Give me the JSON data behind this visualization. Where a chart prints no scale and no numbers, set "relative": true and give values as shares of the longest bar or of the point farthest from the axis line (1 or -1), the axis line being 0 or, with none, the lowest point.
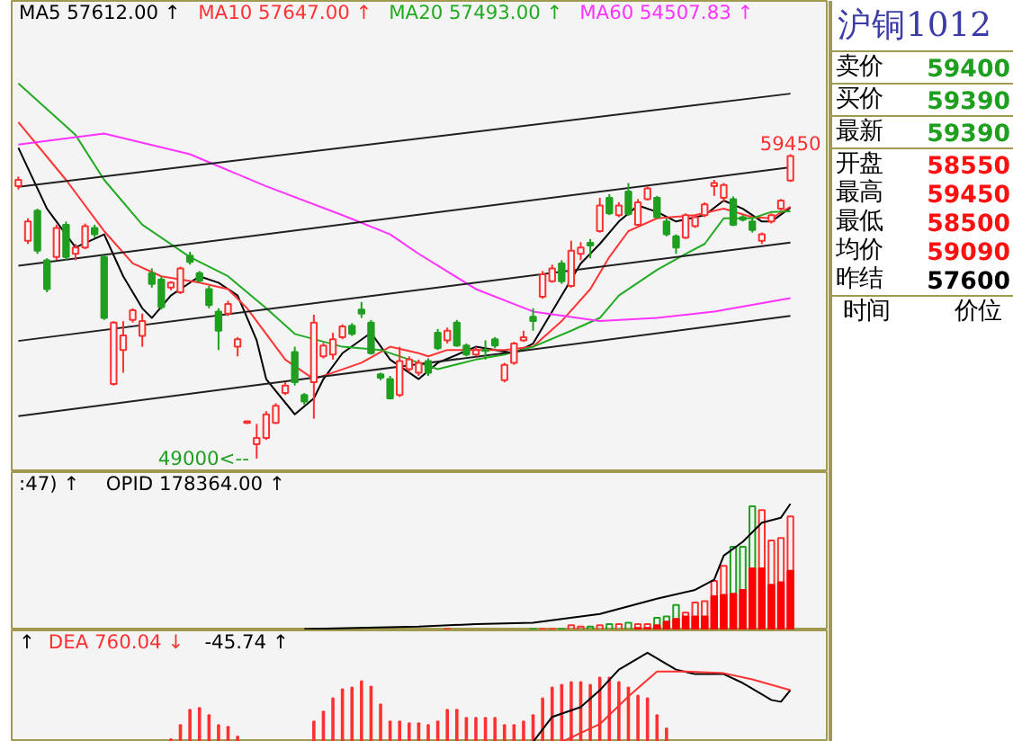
{
  "chart_data": [
    {
      "type": "candlestick",
      "colors": [
        "#ff3030",
        "#ff3030",
        "#1f9f1f",
        "#1f9f1f",
        "#ff3030",
        "#1f9f1f",
        "#ff3030",
        "#ff3030",
        "#1f9f1f",
        "#1f9f1f",
        "#ff3030",
        "#ff3030",
        "#ff3030",
        "#ff3030",
        "#1f9f1f",
        "#1f9f1f",
        "#ff3030",
        "#ff3030",
        "#1f9f1f",
        "#1f9f1f",
        "#1f9f1f",
        "#1f9f1f",
        "#ff3030",
        "#ff3030",
        "#ff3030",
        "#ff3030",
        "#ff3030",
        "#ff3030",
        "#ff3030",
        "#1f9f1f",
        "#1f9f1f",
        "#ff3030",
        "#ff3030",
        "#ff3030",
        "#ff3030",
        "#1f9f1f",
        "#1f9f1f",
        "#1f9f1f",
        "#1f9f1f",
        "#1f9f1f",
        "#ff3030",
        "#ff3030",
        "#ff3030",
        "#1f9f1f",
        "#1f9f1f",
        "#ff3030",
        "#1f9f1f",
        "#1f9f1f",
        "#ff3030",
        "#1f9f1f",
        "#1f9f1f",
        "#ff3030",
        "#ff3030",
        "#ff3030",
        "#1f9f1f",
        "#ff3030",
        "#ff3030",
        "#1f9f1f",
        "#ff3030",
        "#ff3030",
        "#1f9f1f",
        "#ff3030",
        "#1f9f1f",
        "#ff3030",
        "#1f9f1f",
        "#ff3030",
        "#ff3030",
        "#1f9f1f",
        "#1f9f1f",
        "#1f9f1f",
        "#ff3030",
        "#ff3030",
        "#ff3030",
        "#ff3030",
        "#ff3030",
        "#1f9f1f",
        "#1f9f1f",
        "#1f9f1f",
        "#ff3030",
        "#ff3030",
        "#ff3030",
        "#ff3030"
      ],
      "categories": [
        null,
        null,
        null,
        null,
        null,
        null,
        null,
        null,
        null,
        null,
        null,
        null,
        null,
        null,
        null,
        null,
        null,
        null,
        null,
        null,
        null,
        null,
        null,
        null,
        null,
        null,
        null,
        null,
        null,
        null,
        null,
        null,
        null,
        null,
        null,
        null,
        null,
        null,
        null,
        null,
        null,
        null,
        null,
        null,
        null,
        null,
        null,
        null,
        null,
        null,
        null,
        null,
        null,
        null,
        null,
        null,
        null,
        null,
        null,
        null,
        null,
        null,
        null,
        null,
        null,
        null,
        null,
        null,
        null,
        null,
        null,
        null,
        null,
        null,
        null,
        null,
        null,
        null,
        null,
        null,
        null,
        null
      ],
      "ohlc": [
        [
          58350,
          58680,
          58240,
          58570
        ],
        [
          56480,
          57250,
          56370,
          57140
        ],
        [
          57510,
          57580,
          56030,
          56140
        ],
        [
          55810,
          55880,
          54710,
          54820
        ],
        [
          55920,
          57030,
          55810,
          56920
        ],
        [
          57030,
          57140,
          55810,
          55920
        ],
        [
          56030,
          56370,
          55810,
          56250
        ],
        [
          56250,
          57070,
          56190,
          56980
        ],
        [
          56920,
          57030,
          56590,
          56700
        ],
        [
          55920,
          55970,
          53760,
          53830
        ],
        [
          51560,
          53720,
          51510,
          53670
        ],
        [
          52730,
          53720,
          51950,
          53230
        ],
        [
          53760,
          54160,
          53670,
          54090
        ],
        [
          53210,
          53980,
          52840,
          53720
        ],
        [
          55370,
          55530,
          54870,
          55000
        ],
        [
          55150,
          55260,
          54120,
          54200
        ],
        [
          54870,
          55090,
          54780,
          55040
        ],
        [
          54710,
          55590,
          54650,
          55530
        ],
        [
          55970,
          56100,
          55660,
          55750
        ],
        [
          55370,
          55440,
          55040,
          55110
        ],
        [
          54820,
          54930,
          54160,
          54270
        ],
        [
          54050,
          54160,
          52730,
          53390
        ],
        [
          53980,
          54420,
          53900,
          54310
        ],
        [
          52840,
          53170,
          52510,
          53100
        ],
        [
          50230,
          50300,
          50190,
          50280
        ],
        [
          49490,
          50190,
          49000,
          49710
        ],
        [
          49710,
          50630,
          49640,
          50520
        ],
        [
          50230,
          50900,
          50190,
          50810
        ],
        [
          51250,
          51620,
          51180,
          51510
        ],
        [
          52660,
          52840,
          51510,
          51620
        ],
        [
          51180,
          51250,
          50850,
          50960
        ],
        [
          51620,
          53940,
          50370,
          53670
        ],
        [
          52510,
          52970,
          52440,
          52880
        ],
        [
          52570,
          53320,
          52400,
          53100
        ],
        [
          53170,
          53610,
          53100,
          53540
        ],
        [
          53560,
          53650,
          53210,
          53280
        ],
        [
          54120,
          54380,
          53830,
          53980
        ],
        [
          53670,
          53760,
          52570,
          52620
        ],
        [
          51890,
          51950,
          51690,
          51780
        ],
        [
          51730,
          51840,
          51030,
          51070
        ],
        [
          51180,
          52840,
          51120,
          52350
        ],
        [
          52070,
          52510,
          51950,
          52400
        ],
        [
          51950,
          52400,
          51840,
          52290
        ],
        [
          52350,
          52440,
          51840,
          51950
        ],
        [
          53320,
          53450,
          52730,
          52790
        ],
        [
          53060,
          53500,
          52950,
          53390
        ],
        [
          53670,
          53760,
          52840,
          52880
        ],
        [
          52880,
          52950,
          52510,
          52570
        ],
        [
          52570,
          52840,
          52510,
          52730
        ],
        [
          52730,
          53060,
          52400,
          52700
        ],
        [
          53100,
          53170,
          52790,
          52880
        ],
        [
          51690,
          52290,
          51620,
          52220
        ],
        [
          52290,
          53010,
          52220,
          52950
        ],
        [
          53060,
          53390,
          53010,
          53170
        ],
        [
          53870,
          54160,
          53390,
          53720
        ],
        [
          54560,
          55440,
          54490,
          55330
        ],
        [
          55090,
          55660,
          55040,
          55530
        ],
        [
          55700,
          55810,
          55000,
          55090
        ],
        [
          54930,
          56480,
          54870,
          56140
        ],
        [
          56030,
          56430,
          55810,
          56250
        ],
        [
          56410,
          56540,
          55880,
          56320
        ],
        [
          56810,
          57950,
          56760,
          57690
        ],
        [
          57950,
          58080,
          57360,
          57420
        ],
        [
          57360,
          57800,
          57290,
          57690
        ],
        [
          58170,
          58460,
          57330,
          57400
        ],
        [
          57030,
          57910,
          56980,
          57800
        ],
        [
          57910,
          58350,
          57860,
          58280
        ],
        [
          57950,
          58020,
          57250,
          57290
        ],
        [
          57140,
          57250,
          56630,
          56700
        ],
        [
          56630,
          56700,
          56030,
          56250
        ],
        [
          56590,
          57420,
          56540,
          57360
        ],
        [
          56980,
          57360,
          56920,
          57290
        ],
        [
          57360,
          57800,
          57290,
          57730
        ],
        [
          58350,
          58570,
          58020,
          58460
        ],
        [
          57950,
          58460,
          57800,
          58390
        ],
        [
          57910,
          58000,
          56980,
          57030
        ],
        [
          57290,
          57360,
          57140,
          57200
        ],
        [
          57140,
          57250,
          56760,
          56850
        ],
        [
          56480,
          56760,
          56370,
          56700
        ],
        [
          57140,
          57420,
          57070,
          57360
        ],
        [
          57580,
          57910,
          57510,
          57860
        ],
        [
          58550,
          59450,
          58500,
          59390
        ]
      ],
      "series": [
        {
          "type": "line",
          "name": "MA5 57612.00 ↑",
          "color": "#000000",
          "values": [
            59670,
            null,
            null,
            57580,
            null,
            null,
            56250,
            null,
            null,
            56700,
            null,
            55260,
            null,
            54160,
            53830,
            null,
            54600,
            null,
            null,
            55260,
            null,
            55040,
            null,
            54600,
            null,
            53060,
            51730,
            null,
            null,
            50520,
            null,
            51070,
            51730,
            null,
            52620,
            null,
            null,
            53320,
            null,
            52400,
            null,
            null,
            51730,
            null,
            52290,
            null,
            null,
            null,
            52840,
            null,
            null,
            null,
            52620,
            null,
            52950,
            null,
            null,
            54600,
            null,
            55700,
            null,
            56370,
            null,
            57140,
            null,
            57690,
            null,
            57470,
            null,
            57140,
            null,
            null,
            57360,
            null,
            57860,
            null,
            57580,
            null,
            57140,
            57140,
            null,
            57612
          ]
        },
        {
          "type": "line",
          "name": "MA10 57647.00 ↑",
          "color": "#ff3333",
          "values": [
            60550,
            null,
            null,
            null,
            null,
            58570,
            null,
            null,
            null,
            56810,
            null,
            null,
            55700,
            null,
            null,
            55260,
            null,
            null,
            null,
            55040,
            null,
            null,
            54820,
            null,
            54160,
            null,
            null,
            null,
            52400,
            null,
            null,
            51730,
            null,
            51950,
            null,
            null,
            52290,
            null,
            null,
            52840,
            null,
            null,
            52620,
            52510,
            null,
            52730,
            null,
            null,
            null,
            null,
            null,
            52730,
            null,
            null,
            52840,
            null,
            null,
            53720,
            null,
            null,
            54820,
            null,
            55920,
            null,
            56810,
            null,
            null,
            57250,
            null,
            null,
            null,
            57360,
            null,
            null,
            57580,
            null,
            null,
            57290,
            null,
            57250,
            null,
            57647
          ]
        },
        {
          "type": "line",
          "name": "MA20 57493.00 ↑",
          "color": "#22aa22",
          "values": [
            61880,
            null,
            null,
            null,
            null,
            null,
            60110,
            null,
            null,
            58570,
            null,
            null,
            null,
            57030,
            null,
            null,
            null,
            null,
            55920,
            null,
            null,
            null,
            55260,
            null,
            null,
            null,
            54160,
            null,
            null,
            53280,
            null,
            null,
            null,
            null,
            52840,
            null,
            null,
            null,
            52730,
            null,
            null,
            null,
            52290,
            null,
            52070,
            null,
            null,
            null,
            52400,
            null,
            null,
            52570,
            null,
            null,
            52840,
            null,
            null,
            null,
            53390,
            null,
            null,
            53830,
            null,
            54600,
            null,
            null,
            null,
            55480,
            null,
            null,
            56030,
            null,
            56370,
            null,
            57250,
            null,
            null,
            57250,
            null,
            57470,
            null,
            57493
          ]
        },
        {
          "type": "line",
          "name": "MA60 54507.83 ↑",
          "color": "#ff33ff",
          "values": [
            59780,
            null,
            null,
            null,
            null,
            null,
            null,
            null,
            null,
            60160,
            null,
            null,
            null,
            null,
            null,
            null,
            null,
            null,
            59450,
            null,
            null,
            null,
            null,
            null,
            null,
            null,
            58350,
            null,
            null,
            null,
            null,
            null,
            null,
            null,
            57360,
            null,
            null,
            null,
            null,
            56700,
            null,
            null,
            56030,
            null,
            null,
            null,
            null,
            null,
            54820,
            null,
            null,
            null,
            null,
            null,
            54050,
            null,
            null,
            null,
            null,
            null,
            null,
            53720,
            null,
            null,
            null,
            null,
            null,
            53830,
            null,
            null,
            null,
            null,
            null,
            54050,
            null,
            null,
            null,
            null,
            null,
            null,
            null,
            54507.83
          ]
        },
        {
          "type": "line",
          "color": "#202020",
          "values": [
            58330,
            null,
            null,
            null,
            null,
            null,
            null,
            null,
            null,
            null,
            null,
            null,
            null,
            null,
            null,
            null,
            null,
            null,
            null,
            null,
            null,
            null,
            null,
            null,
            null,
            null,
            null,
            null,
            null,
            null,
            null,
            null,
            null,
            null,
            null,
            null,
            null,
            null,
            null,
            null,
            null,
            null,
            null,
            null,
            null,
            null,
            null,
            null,
            null,
            null,
            null,
            null,
            null,
            null,
            null,
            null,
            null,
            null,
            null,
            null,
            null,
            null,
            null,
            null,
            null,
            null,
            null,
            null,
            null,
            null,
            null,
            null,
            null,
            null,
            null,
            null,
            null,
            null,
            null,
            null,
            null,
            61530
          ]
        },
        {
          "type": "line",
          "color": "#202020",
          "values": [
            55620,
            null,
            null,
            null,
            null,
            null,
            null,
            null,
            null,
            null,
            null,
            null,
            null,
            null,
            null,
            null,
            null,
            null,
            null,
            null,
            null,
            null,
            null,
            null,
            null,
            null,
            null,
            null,
            null,
            null,
            null,
            null,
            null,
            null,
            null,
            null,
            null,
            null,
            null,
            null,
            null,
            null,
            null,
            null,
            null,
            null,
            null,
            null,
            null,
            null,
            null,
            null,
            null,
            null,
            null,
            null,
            null,
            null,
            null,
            null,
            null,
            null,
            null,
            null,
            null,
            null,
            null,
            null,
            null,
            null,
            null,
            null,
            null,
            null,
            null,
            null,
            null,
            null,
            null,
            null,
            null,
            59000
          ]
        },
        {
          "type": "line",
          "color": "#202020",
          "values": [
            53040,
            null,
            null,
            null,
            null,
            null,
            null,
            null,
            null,
            null,
            null,
            null,
            null,
            null,
            null,
            null,
            null,
            null,
            null,
            null,
            null,
            null,
            null,
            null,
            null,
            null,
            null,
            null,
            null,
            null,
            null,
            null,
            null,
            null,
            null,
            null,
            null,
            null,
            null,
            null,
            null,
            null,
            null,
            null,
            null,
            null,
            null,
            null,
            null,
            null,
            null,
            null,
            null,
            null,
            null,
            null,
            null,
            null,
            null,
            null,
            null,
            null,
            null,
            null,
            null,
            null,
            null,
            null,
            null,
            null,
            null,
            null,
            null,
            null,
            null,
            null,
            null,
            null,
            null,
            null,
            null,
            56420
          ]
        },
        {
          "type": "line",
          "color": "#202020",
          "values": [
            50460,
            null,
            null,
            null,
            null,
            null,
            null,
            null,
            null,
            null,
            null,
            null,
            null,
            null,
            null,
            null,
            null,
            null,
            null,
            null,
            null,
            null,
            null,
            null,
            null,
            null,
            null,
            null,
            null,
            null,
            null,
            null,
            null,
            null,
            null,
            null,
            null,
            null,
            null,
            null,
            null,
            null,
            null,
            null,
            null,
            null,
            null,
            null,
            null,
            null,
            null,
            null,
            null,
            null,
            null,
            null,
            null,
            null,
            null,
            null,
            null,
            null,
            null,
            null,
            null,
            null,
            null,
            null,
            null,
            null,
            null,
            null,
            null,
            null,
            null,
            null,
            null,
            null,
            null,
            null,
            null,
            53900
          ]
        }
      ],
      "annotations": [
        {
          "text": "59450",
          "y": 59450
        },
        "49000<--"
      ]
    },
    {
      "type": "bar",
      "relative": true,
      "categories": [
        null,
        null,
        null,
        null,
        null,
        null,
        null,
        null,
        null,
        null,
        null,
        null,
        null,
        null,
        null,
        null,
        null,
        null,
        null,
        null,
        null,
        null,
        null,
        null,
        null,
        null,
        null,
        null,
        null,
        null,
        null,
        null,
        null,
        null,
        null,
        null,
        null,
        null,
        null,
        null,
        null,
        null,
        null,
        null,
        null,
        null,
        null,
        null,
        null,
        null,
        null,
        null,
        null,
        null,
        null,
        null,
        null,
        null,
        null,
        null,
        null,
        null,
        null,
        null,
        null,
        null,
        null,
        null,
        null,
        null,
        null,
        null,
        null,
        null,
        null,
        null,
        null,
        null,
        null,
        null,
        null,
        null
      ],
      "annotations": [
        ":47) ↑"
      ],
      "series": [
        {
          "type": "bar",
          "values": [
            null,
            null,
            null,
            null,
            null,
            null,
            null,
            null,
            null,
            null,
            null,
            null,
            null,
            null,
            null,
            null,
            null,
            null,
            null,
            null,
            null,
            null,
            null,
            null,
            null,
            null,
            null,
            null,
            null,
            null,
            null,
            null,
            null,
            null,
            null,
            null,
            null,
            null,
            null,
            null,
            null,
            null,
            null,
            null,
            null,
            0.01,
            null,
            null,
            null,
            null,
            null,
            null,
            null,
            null,
            0.01,
            0.01,
            0.01,
            0.01,
            0.04,
            0.03,
            0.03,
            0.04,
            0.05,
            0.05,
            0.06,
            0.05,
            0.05,
            0.1,
            0.11,
            0.2,
            0.14,
            0.22,
            0.23,
            0.39,
            0.51,
            0.66,
            0.66,
            0.98,
            0.95,
            0.71,
            0.73,
            0.9
          ],
          "colors": [
            "#ff3030",
            "#ff3030",
            "#1f9f1f",
            "#1f9f1f",
            "#ff3030",
            "#1f9f1f",
            "#ff3030",
            "#ff3030",
            "#1f9f1f",
            "#1f9f1f",
            "#ff3030",
            "#ff3030",
            "#ff3030",
            "#ff3030",
            "#1f9f1f",
            "#1f9f1f",
            "#ff3030",
            "#ff3030",
            "#1f9f1f",
            "#1f9f1f",
            "#1f9f1f",
            "#1f9f1f",
            "#ff3030",
            "#ff3030",
            "#ff3030",
            "#ff3030",
            "#ff3030",
            "#ff3030",
            "#ff3030",
            "#1f9f1f",
            "#1f9f1f",
            "#ff3030",
            "#ff3030",
            "#ff3030",
            "#ff3030",
            "#1f9f1f",
            "#1f9f1f",
            "#1f9f1f",
            "#1f9f1f",
            "#1f9f1f",
            "#ff3030",
            "#ff3030",
            "#ff3030",
            "#1f9f1f",
            "#1f9f1f",
            "#ff3030",
            "#1f9f1f",
            "#1f9f1f",
            "#ff3030",
            "#1f9f1f",
            "#1f9f1f",
            "#ff3030",
            "#ff3030",
            "#ff3030",
            "#1f9f1f",
            "#ff3030",
            "#ff3030",
            "#1f9f1f",
            "#ff3030",
            "#ff3030",
            "#1f9f1f",
            "#ff3030",
            "#1f9f1f",
            "#ff3030",
            "#1f9f1f",
            "#ff3030",
            "#ff3030",
            "#1f9f1f",
            "#1f9f1f",
            "#1f9f1f",
            "#ff3030",
            "#ff3030",
            "#ff3030",
            "#ff3030",
            "#ff3030",
            "#1f9f1f",
            "#1f9f1f",
            "#1f9f1f",
            "#ff3030",
            "#ff3030",
            "#ff3030",
            "#ff3030"
          ]
        },
        {
          "type": "bar",
          "color": "#ff0000",
          "values": [
            null,
            null,
            null,
            null,
            null,
            null,
            null,
            null,
            null,
            null,
            null,
            null,
            null,
            null,
            null,
            null,
            null,
            null,
            null,
            null,
            null,
            null,
            null,
            null,
            null,
            null,
            null,
            null,
            null,
            null,
            null,
            null,
            null,
            null,
            null,
            null,
            null,
            null,
            null,
            null,
            null,
            null,
            null,
            null,
            null,
            null,
            null,
            null,
            null,
            null,
            null,
            null,
            null,
            null,
            null,
            null,
            null,
            null,
            null,
            null,
            null,
            null,
            null,
            null,
            null,
            0.02,
            0.02,
            0.04,
            0.07,
            0.09,
            0.11,
            0.11,
            0.11,
            0.27,
            0.28,
            0.29,
            0.32,
            0.49,
            0.49,
            0.36,
            0.38,
            0.47
          ]
        },
        {
          "type": "line",
          "name": "OPID 178364.00 ↑",
          "color": "#000000",
          "values": [
            null,
            null,
            null,
            null,
            null,
            null,
            null,
            null,
            null,
            null,
            null,
            null,
            null,
            null,
            null,
            null,
            null,
            null,
            null,
            null,
            null,
            null,
            null,
            null,
            null,
            null,
            null,
            null,
            null,
            null,
            0.01,
            null,
            null,
            null,
            null,
            null,
            null,
            null,
            null,
            null,
            null,
            null,
            0.03,
            null,
            null,
            null,
            null,
            null,
            0.05,
            null,
            null,
            null,
            null,
            null,
            0.06,
            null,
            null,
            null,
            null,
            null,
            null,
            0.13,
            null,
            null,
            null,
            null,
            null,
            0.25,
            null,
            null,
            null,
            0.32,
            null,
            0.4,
            0.59,
            null,
            0.7,
            null,
            0.85,
            null,
            0.89,
            1
          ]
        }
      ]
    },
    {
      "type": "bar",
      "relative": true,
      "categories": [
        null,
        null,
        null,
        null,
        null,
        null,
        null,
        null,
        null,
        null,
        null,
        null,
        null,
        null,
        null,
        null,
        null,
        null,
        null,
        null,
        null,
        null,
        null,
        null,
        null,
        null,
        null,
        null,
        null,
        null,
        null,
        null,
        null,
        null,
        null,
        null,
        null,
        null,
        null,
        null,
        null,
        null,
        null,
        null,
        null,
        null,
        null,
        null,
        null,
        null,
        null,
        null,
        null,
        null,
        null,
        null,
        null,
        null,
        null,
        null,
        null,
        null,
        null,
        null,
        null,
        null,
        null,
        null,
        null,
        null,
        null,
        null,
        null,
        null,
        null,
        null,
        null,
        null,
        null,
        null,
        null,
        null
      ],
      "annotations": [
        "↑",
        "-45.74 ↑"
      ],
      "series": [
        {
          "type": "bar",
          "color": "#ff3030",
          "values": [
            null,
            null,
            null,
            null,
            null,
            null,
            null,
            null,
            null,
            null,
            null,
            null,
            null,
            null,
            null,
            null,
            0.03,
            0.19,
            0.36,
            0.38,
            0.3,
            0.19,
            0.17,
            0.06,
            null,
            null,
            null,
            null,
            null,
            null,
            null,
            0.23,
            0.34,
            0.49,
            0.59,
            0.61,
            0.68,
            0.62,
            0.42,
            0.23,
            0.23,
            0.21,
            0.21,
            0.19,
            0.23,
            0.36,
            0.36,
            0.27,
            0.27,
            0.27,
            0.27,
            0.19,
            0.19,
            0.23,
            0.3,
            0.49,
            0.61,
            0.64,
            0.67,
            0.67,
            0.64,
            0.72,
            0.72,
            0.67,
            0.61,
            0.52,
            0.49,
            0.3,
            0.15,
            null,
            null,
            null,
            null,
            null,
            null,
            null,
            null,
            null,
            null,
            null,
            null,
            null
          ]
        },
        {
          "type": "line",
          "color": "#000000",
          "values": [
            null,
            null,
            null,
            null,
            null,
            null,
            null,
            null,
            null,
            null,
            null,
            null,
            null,
            null,
            null,
            null,
            null,
            null,
            null,
            null,
            null,
            null,
            null,
            null,
            null,
            null,
            null,
            null,
            null,
            null,
            null,
            null,
            null,
            null,
            null,
            null,
            null,
            null,
            null,
            null,
            null,
            null,
            null,
            null,
            null,
            null,
            null,
            null,
            null,
            null,
            null,
            null,
            null,
            null,
            0,
            null,
            0.28,
            null,
            null,
            0.39,
            null,
            0.58,
            null,
            0.81,
            null,
            null,
            1,
            null,
            null,
            0.81,
            null,
            0.76,
            null,
            null,
            0.76,
            null,
            0.66,
            null,
            null,
            0.47,
            0.45,
            0.58
          ]
        },
        {
          "type": "line",
          "name": "DEA 760.04 ↓",
          "color": "#ff3030",
          "values": [
            null,
            null,
            null,
            null,
            null,
            null,
            null,
            null,
            null,
            null,
            null,
            null,
            null,
            null,
            null,
            null,
            null,
            null,
            null,
            null,
            null,
            null,
            null,
            null,
            null,
            null,
            null,
            null,
            null,
            null,
            null,
            null,
            null,
            null,
            null,
            null,
            null,
            null,
            null,
            null,
            null,
            null,
            null,
            null,
            null,
            null,
            null,
            null,
            null,
            null,
            null,
            null,
            null,
            null,
            null,
            null,
            null,
            0,
            null,
            null,
            null,
            0.2,
            null,
            null,
            0.51,
            null,
            null,
            0.79,
            null,
            null,
            0.79,
            null,
            null,
            null,
            0.77,
            null,
            null,
            0.7,
            null,
            null,
            null,
            0.58
          ]
        }
      ]
    },
    {
      "type": "other",
      "title": "沪铜1012",
      "annotations": [
        "卖价",
        "59400",
        "买价",
        "59390",
        "最新",
        "59390",
        "开盘",
        "58550",
        "最高",
        "59450",
        "最低",
        "58500",
        "均价",
        "59090",
        "昨结",
        "57600",
        "时间",
        "价位"
      ]
    }
  ]
}
